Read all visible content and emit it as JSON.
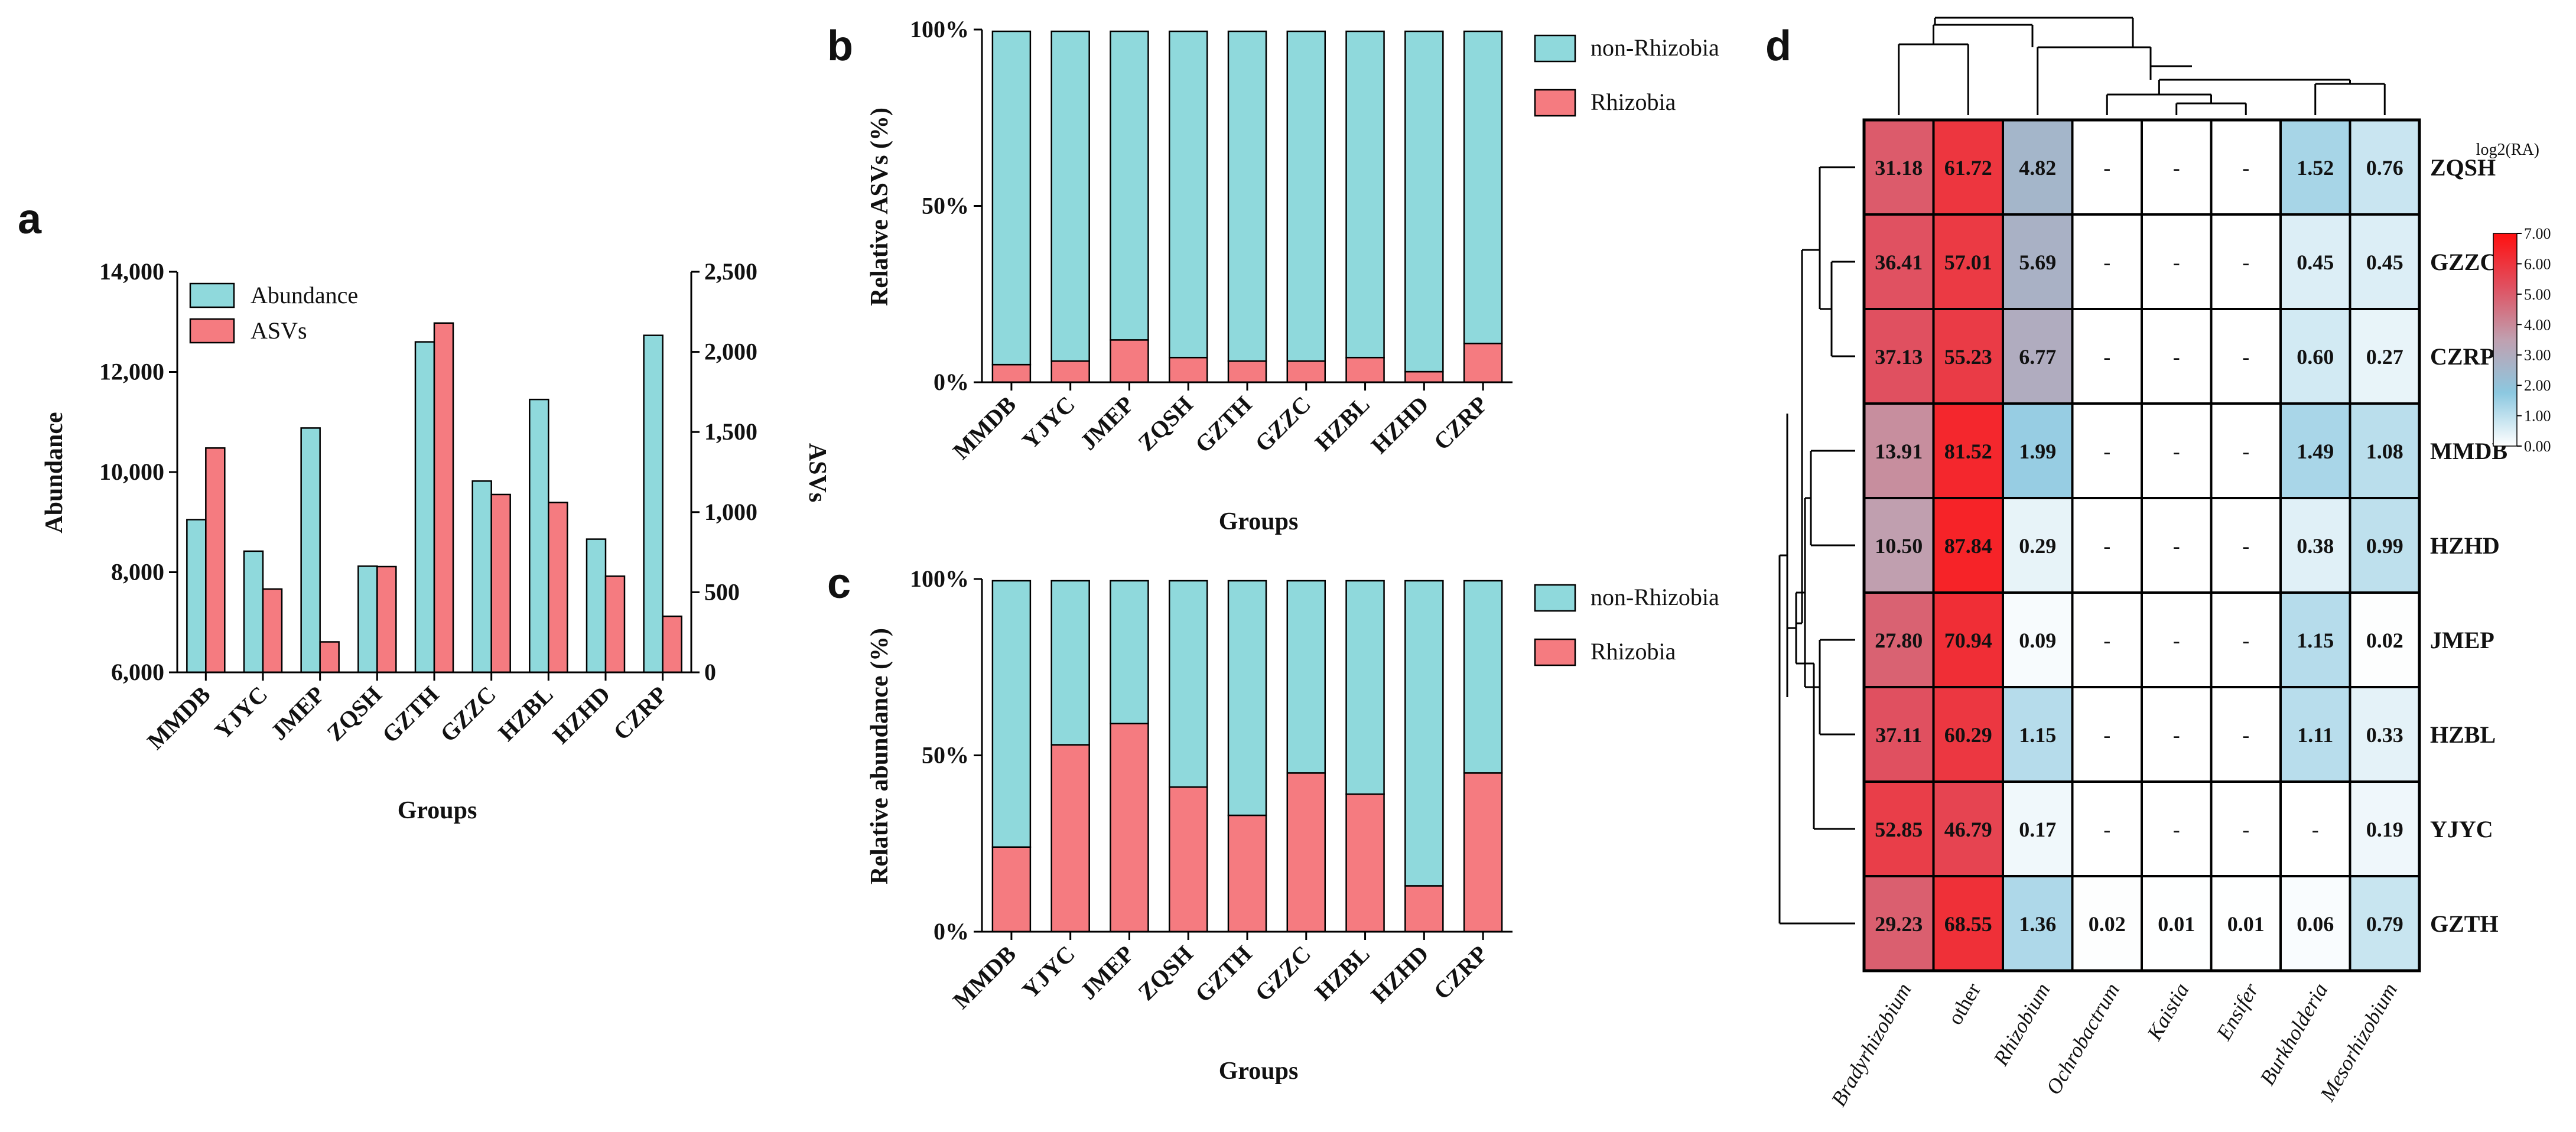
{
  "colors": {
    "teal": "#8fd9dc",
    "red": "#f57b80",
    "stroke": "#000000"
  },
  "panels": {
    "a": {
      "letter": "a",
      "xlabel": "Groups",
      "left_axis_label": "Abundance",
      "right_axis_label": "ASVs",
      "legend": [
        "Abundance",
        "ASVs"
      ]
    },
    "b": {
      "letter": "b",
      "xlabel": "Groups",
      "ylabel": "Relative ASVs (%)",
      "legend": [
        "non-Rhizobia",
        "Rhizobia"
      ]
    },
    "c": {
      "letter": "c",
      "xlabel": "Groups",
      "ylabel": "Relative abundance (%)",
      "legend": [
        "non-Rhizobia",
        "Rhizobia"
      ]
    },
    "d": {
      "letter": "d",
      "scale_title": "log2(RA)",
      "empty_mark": "-"
    }
  },
  "chart_data": [
    {
      "panel": "a",
      "type": "bar",
      "categories": [
        "MMDB",
        "YJYC",
        "JMEP",
        "ZQSH",
        "GZTH",
        "GZZC",
        "HZBL",
        "HZHD",
        "CZRP"
      ],
      "series": [
        {
          "name": "Abundance",
          "axis": "left",
          "values": [
            9050,
            8420,
            10880,
            8120,
            12600,
            9820,
            11450,
            8660,
            12730
          ]
        },
        {
          "name": "ASVs",
          "axis": "right",
          "values": [
            1400,
            520,
            190,
            660,
            2180,
            1110,
            1060,
            600,
            350
          ]
        }
      ],
      "xlabel": "Groups",
      "ylabel": "Abundance",
      "y2label": "ASVs",
      "ylim": [
        6000,
        14000
      ],
      "y2lim": [
        0,
        2500
      ],
      "yticks": [
        "6,000",
        "8,000",
        "10,000",
        "12,000",
        "14,000"
      ],
      "y2ticks": [
        "0",
        "500",
        "1,000",
        "1,500",
        "2,000",
        "2,500"
      ],
      "legend": "top-left"
    },
    {
      "panel": "b",
      "type": "bar",
      "stacked": true,
      "categories": [
        "MMDB",
        "YJYC",
        "JMEP",
        "ZQSH",
        "GZTH",
        "GZZC",
        "HZBL",
        "HZHD",
        "CZRP"
      ],
      "series": [
        {
          "name": "Rhizobia",
          "values": [
            5,
            6,
            12,
            7,
            6,
            6,
            7,
            3,
            11
          ]
        },
        {
          "name": "non-Rhizobia",
          "values": [
            95,
            94,
            88,
            93,
            94,
            94,
            93,
            97,
            89
          ]
        }
      ],
      "xlabel": "Groups",
      "ylabel": "Relative ASVs (%)",
      "ylim": [
        0,
        100
      ],
      "yticks": [
        "0%",
        "50%",
        "100%"
      ],
      "legend": "right"
    },
    {
      "panel": "c",
      "type": "bar",
      "stacked": true,
      "categories": [
        "MMDB",
        "YJYC",
        "JMEP",
        "ZQSH",
        "GZTH",
        "GZZC",
        "HZBL",
        "HZHD",
        "CZRP"
      ],
      "series": [
        {
          "name": "Rhizobia",
          "values": [
            24,
            53,
            59,
            41,
            33,
            45,
            39,
            13,
            45
          ]
        },
        {
          "name": "non-Rhizobia",
          "values": [
            76,
            47,
            41,
            59,
            67,
            55,
            61,
            87,
            55
          ]
        }
      ],
      "xlabel": "Groups",
      "ylabel": "Relative abundance (%)",
      "ylim": [
        0,
        100
      ],
      "yticks": [
        "0%",
        "50%",
        "100%"
      ],
      "legend": "right"
    },
    {
      "panel": "d",
      "type": "heatmap",
      "columns": [
        "Bradyrhizobium",
        "other",
        "Rhizobium",
        "Ochrobactrum",
        "Kaistia",
        "Ensifer",
        "Burkholderia",
        "Mesorhizobium"
      ],
      "rows": [
        "ZQSH",
        "GZZC",
        "CZRP",
        "MMDB",
        "HZHD",
        "JMEP",
        "HZBL",
        "YJYC",
        "GZTH"
      ],
      "values": [
        [
          "31.18",
          "61.72",
          "4.82",
          "-",
          "-",
          "-",
          "1.52",
          "0.76"
        ],
        [
          "36.41",
          "57.01",
          "5.69",
          "-",
          "-",
          "-",
          "0.45",
          "0.45"
        ],
        [
          "37.13",
          "55.23",
          "6.77",
          "-",
          "-",
          "-",
          "0.60",
          "0.27"
        ],
        [
          "13.91",
          "81.52",
          "1.99",
          "-",
          "-",
          "-",
          "1.49",
          "1.08"
        ],
        [
          "10.50",
          "87.84",
          "0.29",
          "-",
          "-",
          "-",
          "0.38",
          "0.99"
        ],
        [
          "27.80",
          "70.94",
          "0.09",
          "-",
          "-",
          "-",
          "1.15",
          "0.02"
        ],
        [
          "37.11",
          "60.29",
          "1.15",
          "-",
          "-",
          "-",
          "1.11",
          "0.33"
        ],
        [
          "52.85",
          "46.79",
          "0.17",
          "-",
          "-",
          "-",
          "-",
          "0.19"
        ],
        [
          "29.23",
          "68.55",
          "1.36",
          "0.02",
          "0.01",
          "0.01",
          "0.06",
          "0.79"
        ]
      ],
      "colorbar": {
        "title": "log2(RA)",
        "range": [
          0,
          7
        ],
        "ticks": [
          "0.00",
          "1.00",
          "2.00",
          "3.00",
          "4.00",
          "5.00",
          "6.00",
          "7.00"
        ],
        "colors": [
          "#ffffff",
          "#8cc8e0",
          "#c0a0b0",
          "#e05060",
          "#ff1010"
        ]
      }
    }
  ]
}
